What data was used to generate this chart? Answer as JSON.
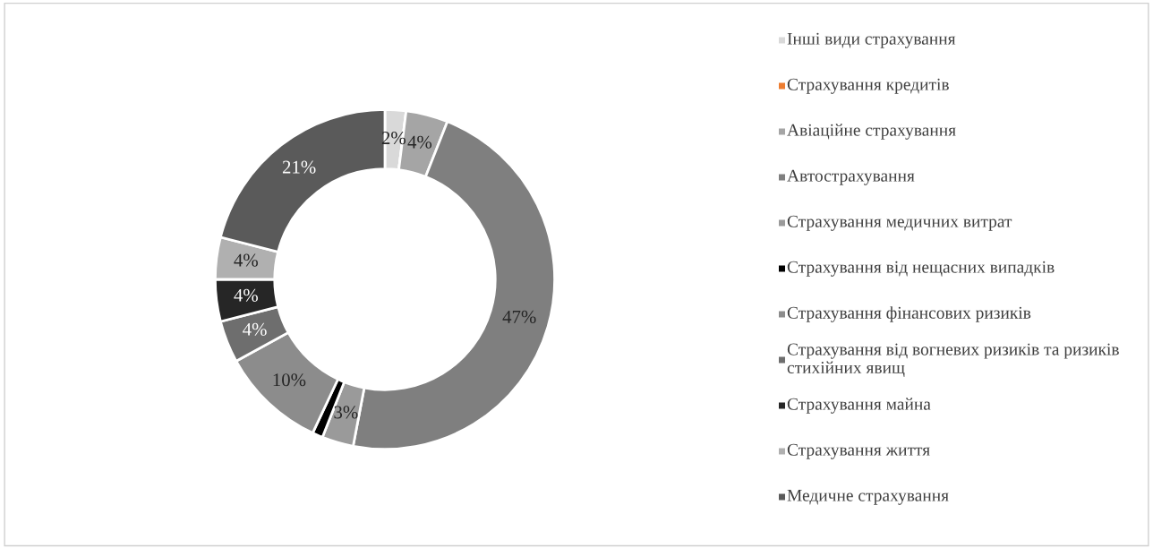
{
  "chart_data": {
    "type": "donut",
    "categories": [
      "Інші види страхування",
      "Страхування кредитів",
      "Авіаційне страхування",
      "Автострахування",
      "Страхування медичних витрат",
      "Страхування від нещасних випадків",
      "Страхування фінансових ризиків",
      "Страхування від вогневих ризиків та ризиків стихійних явищ",
      "Страхування майна",
      "Страхування життя",
      "Медичне страхування"
    ],
    "values": [
      2,
      0,
      4,
      47,
      3,
      1,
      10,
      4,
      4,
      4,
      21
    ],
    "value_labels": [
      "2%",
      null,
      "4%",
      "47%",
      "3%",
      null,
      "10%",
      "4%",
      "4%",
      "4%",
      "21%"
    ],
    "colors": [
      "#d9d9d9",
      "#ed7d31",
      "#a5a5a5",
      "#7f7f7f",
      "#9a9a9a",
      "#000000",
      "#8c8c8c",
      "#6e6e6e",
      "#262626",
      "#b0b0b0",
      "#5a5a5a"
    ],
    "legend": "right"
  }
}
